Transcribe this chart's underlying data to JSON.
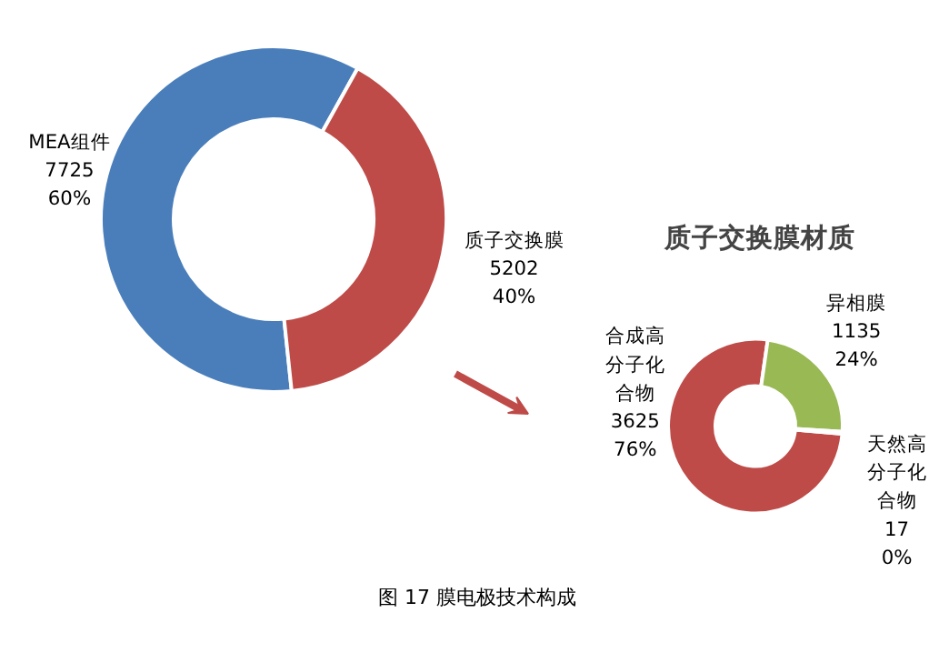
{
  "chart_data": [
    {
      "type": "donut",
      "categories": [
        "MEA组件",
        "质子交换膜"
      ],
      "values": [
        7725,
        5202
      ],
      "colors": [
        "#4a7ebb",
        "#be4b48"
      ],
      "value_labels": [
        "7725\n60%",
        "5202\n40%"
      ],
      "annotations": [
        "图 17 膜电极技术构成"
      ]
    },
    {
      "type": "donut",
      "title": "质子交换膜材质",
      "categories": [
        "合成高分子化合物",
        "异相膜",
        "天然高分子化合物"
      ],
      "values": [
        3625,
        1135,
        17
      ],
      "colors": [
        "#be4b48",
        "#98b954",
        "#4a7ebb"
      ],
      "value_labels": [
        "3625\n76%",
        "1135\n24%",
        "17\n0%"
      ]
    }
  ]
}
